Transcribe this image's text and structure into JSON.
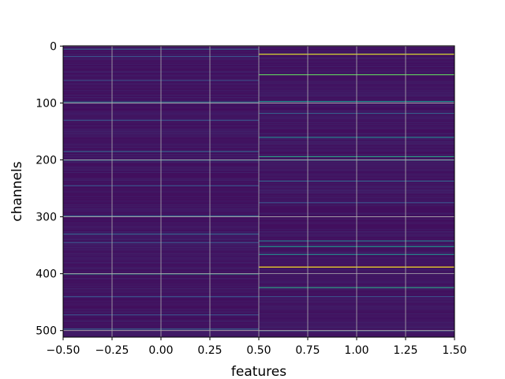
{
  "chart_data": {
    "type": "heatmap",
    "xlabel": "features",
    "ylabel": "channels",
    "xlim": [
      -0.5,
      1.5
    ],
    "ylim": [
      511.5,
      -0.5
    ],
    "n_rows": 512,
    "columns": [
      0,
      1
    ],
    "xticks": [
      -0.5,
      -0.25,
      0.0,
      0.25,
      0.5,
      0.75,
      1.0,
      1.25,
      1.5
    ],
    "xtick_labels": [
      "−0.50",
      "−0.25",
      "0.00",
      "0.25",
      "0.50",
      "0.75",
      "1.00",
      "1.25",
      "1.50"
    ],
    "yticks": [
      0,
      100,
      200,
      300,
      400,
      500
    ],
    "ytick_labels": [
      "0",
      "100",
      "200",
      "300",
      "400",
      "500"
    ],
    "grid": true,
    "colormap": "viridis",
    "background_value": 0.05,
    "highlights": [
      {
        "channel": 5,
        "col": 0,
        "value": 0.3
      },
      {
        "channel": 18,
        "col": 0,
        "value": 0.25
      },
      {
        "channel": 60,
        "col": 0,
        "value": 0.22
      },
      {
        "channel": 98,
        "col": 0,
        "value": 0.35
      },
      {
        "channel": 130,
        "col": 0,
        "value": 0.25
      },
      {
        "channel": 185,
        "col": 0,
        "value": 0.3
      },
      {
        "channel": 200,
        "col": 0,
        "value": 0.4
      },
      {
        "channel": 245,
        "col": 0,
        "value": 0.25
      },
      {
        "channel": 298,
        "col": 0,
        "value": 0.3
      },
      {
        "channel": 330,
        "col": 0,
        "value": 0.3
      },
      {
        "channel": 345,
        "col": 0,
        "value": 0.25
      },
      {
        "channel": 400,
        "col": 0,
        "value": 0.55
      },
      {
        "channel": 440,
        "col": 0,
        "value": 0.25
      },
      {
        "channel": 472,
        "col": 0,
        "value": 0.25
      },
      {
        "channel": 497,
        "col": 0,
        "value": 0.3
      },
      {
        "channel": 14,
        "col": 1,
        "value": 0.95
      },
      {
        "channel": 50,
        "col": 1,
        "value": 0.75
      },
      {
        "channel": 97,
        "col": 1,
        "value": 0.5
      },
      {
        "channel": 118,
        "col": 1,
        "value": 0.3
      },
      {
        "channel": 160,
        "col": 1,
        "value": 0.45
      },
      {
        "channel": 194,
        "col": 1,
        "value": 0.55
      },
      {
        "channel": 200,
        "col": 1,
        "value": 0.4
      },
      {
        "channel": 237,
        "col": 1,
        "value": 0.3
      },
      {
        "channel": 275,
        "col": 1,
        "value": 0.25
      },
      {
        "channel": 342,
        "col": 1,
        "value": 0.4
      },
      {
        "channel": 352,
        "col": 1,
        "value": 0.5
      },
      {
        "channel": 366,
        "col": 1,
        "value": 0.45
      },
      {
        "channel": 388,
        "col": 1,
        "value": 1.0
      },
      {
        "channel": 424,
        "col": 1,
        "value": 0.55
      },
      {
        "channel": 440,
        "col": 1,
        "value": 0.25
      },
      {
        "channel": 500,
        "col": 1,
        "value": 0.3
      }
    ]
  }
}
